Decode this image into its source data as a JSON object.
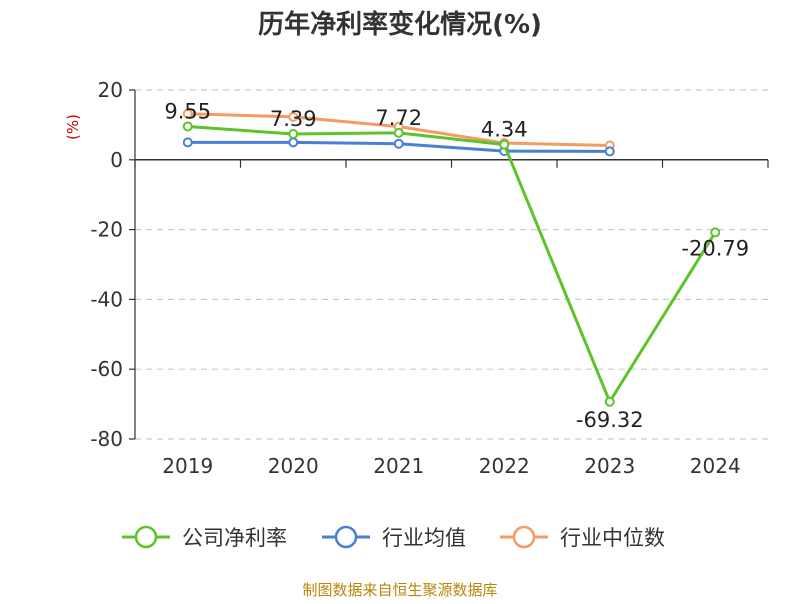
{
  "chart_data": {
    "type": "line",
    "title": "历年净利率变化情况(%)",
    "ylabel": "(%)",
    "xlabel": "",
    "categories": [
      "2019",
      "2020",
      "2021",
      "2022",
      "2023",
      "2024"
    ],
    "ylim": [
      -80,
      20
    ],
    "yticks": [
      20,
      0,
      -20,
      -40,
      -60,
      -80
    ],
    "grid": true,
    "legend_position": "bottom",
    "series": [
      {
        "name": "公司净利率",
        "color": "#5cc42a",
        "values": [
          9.55,
          7.39,
          7.72,
          4.34,
          -69.32,
          -20.79
        ],
        "labels": [
          "9.55",
          "7.39",
          "7.72",
          "4.34",
          "-69.32",
          "-20.79"
        ]
      },
      {
        "name": "行业均值",
        "color": "#4a7fd6",
        "values": [
          5.0,
          5.0,
          4.6,
          2.5,
          2.4,
          null
        ]
      },
      {
        "name": "行业中位数",
        "color": "#f49a63",
        "values": [
          13.2,
          12.3,
          9.5,
          4.8,
          4.1,
          null
        ]
      }
    ],
    "source": "制图数据来自恒生聚源数据库"
  }
}
